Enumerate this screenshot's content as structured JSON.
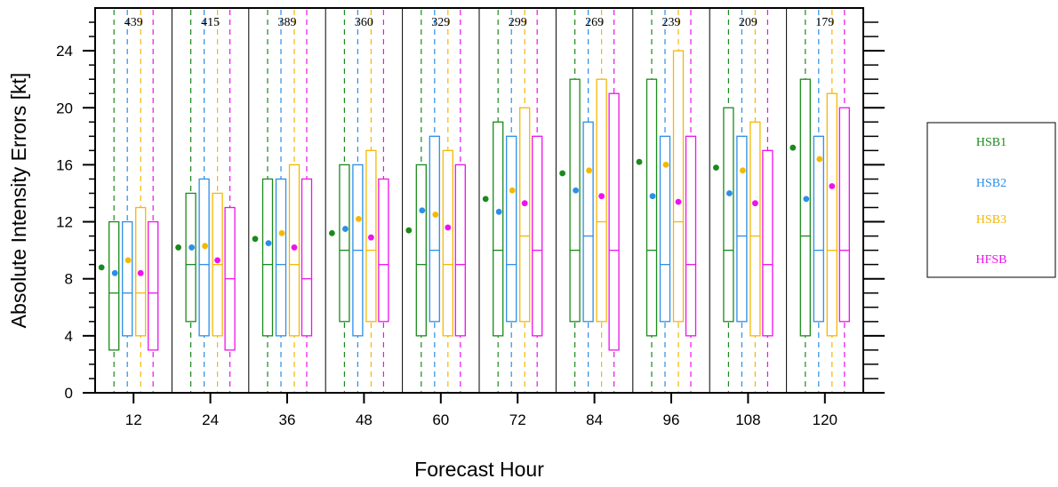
{
  "chart_data": {
    "type": "boxplot",
    "xlabel": "Forecast Hour",
    "ylabel": "Absolute Intensity Errors [kt]",
    "ylim": [
      0,
      27
    ],
    "yticks": [
      0,
      4,
      8,
      12,
      16,
      20,
      24
    ],
    "categories": [
      "12",
      "24",
      "36",
      "48",
      "60",
      "72",
      "84",
      "96",
      "108",
      "120"
    ],
    "counts": [
      "439",
      "415",
      "389",
      "360",
      "329",
      "299",
      "269",
      "239",
      "209",
      "179"
    ],
    "legend_position": "right",
    "series": [
      {
        "name": "HSB1",
        "color": "#1a8a1a",
        "q1": [
          3,
          5,
          4,
          5,
          4,
          4,
          5,
          4,
          5,
          4
        ],
        "median": [
          7,
          9,
          9,
          10,
          9,
          10,
          10,
          10,
          10,
          11
        ],
        "q3": [
          12,
          14,
          15,
          16,
          16,
          19,
          22,
          22,
          20,
          22
        ],
        "mean": [
          8.8,
          10.2,
          10.8,
          11.2,
          11.4,
          13.6,
          15.4,
          16.2,
          15.8,
          17.2
        ]
      },
      {
        "name": "HSB2",
        "color": "#2c8ee8",
        "q1": [
          4,
          4,
          4,
          4,
          5,
          5,
          5,
          5,
          5,
          5
        ],
        "median": [
          7,
          9,
          9,
          10,
          10,
          9,
          11,
          9,
          11,
          10
        ],
        "q3": [
          12,
          15,
          15,
          16,
          18,
          18,
          19,
          18,
          18,
          18
        ],
        "mean": [
          8.4,
          10.2,
          10.5,
          11.5,
          12.8,
          12.7,
          14.2,
          13.8,
          14.0,
          13.6
        ]
      },
      {
        "name": "HSB3",
        "color": "#f5b800",
        "q1": [
          4,
          4,
          4,
          5,
          4,
          5,
          5,
          5,
          4,
          4
        ],
        "median": [
          7,
          9,
          9,
          10,
          9,
          11,
          12,
          12,
          11,
          10
        ],
        "q3": [
          13,
          14,
          16,
          17,
          17,
          20,
          22,
          24,
          19,
          21
        ],
        "mean": [
          9.3,
          10.3,
          11.2,
          12.2,
          12.5,
          14.2,
          15.6,
          16.0,
          15.6,
          16.4
        ]
      },
      {
        "name": "HFSB",
        "color": "#ee11ee",
        "q1": [
          3,
          3,
          4,
          5,
          4,
          4,
          3,
          4,
          4,
          5
        ],
        "median": [
          7,
          8,
          8,
          9,
          9,
          10,
          10,
          9,
          9,
          10
        ],
        "q3": [
          12,
          13,
          15,
          15,
          16,
          18,
          21,
          18,
          17,
          20
        ],
        "mean": [
          8.4,
          9.3,
          10.2,
          10.9,
          11.6,
          13.3,
          13.8,
          13.4,
          13.3,
          14.5
        ]
      }
    ]
  }
}
